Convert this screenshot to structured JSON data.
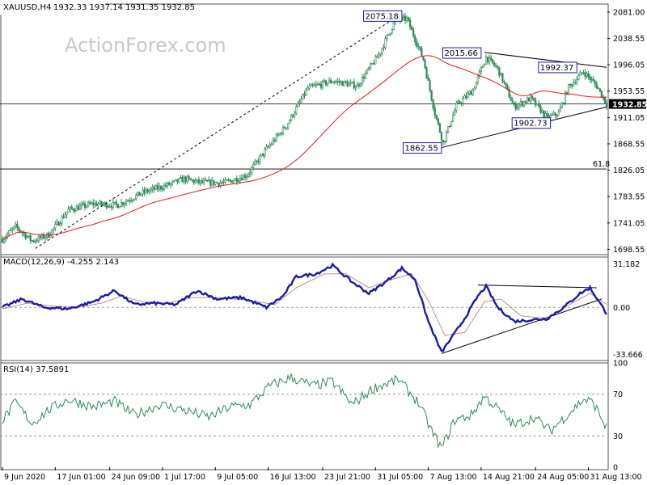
{
  "header": {
    "symbol": "XAUUSD,H4",
    "ohlc": "1932.33 1937.14 1931.35 1932.85"
  },
  "watermark": "ActionForex.com",
  "colors": {
    "candle": "#2e8b57",
    "ma": "#e8191f",
    "macd": "#1a1aa6",
    "signal": "#c08f8f",
    "rsi": "#2e8b57",
    "trend": "#000000",
    "label_border": "#1a1aa6",
    "label_fill": "#ffffff"
  },
  "chart_data": [
    {
      "type": "candlestick",
      "title": "XAUUSD,H4",
      "ylim": [
        1690,
        2090
      ],
      "y_ticks": [
        "2081.00",
        "2038.55",
        "1996.05",
        "1953.55",
        "1911.05",
        "1868.55",
        "1826.05",
        "1783.55",
        "1741.05",
        "1698.55"
      ],
      "last_price": "1932.85",
      "anchors": [
        {
          "i": 0,
          "v": 1715
        },
        {
          "i": 8,
          "v": 1735
        },
        {
          "i": 18,
          "v": 1712
        },
        {
          "i": 28,
          "v": 1722
        },
        {
          "i": 40,
          "v": 1762
        },
        {
          "i": 55,
          "v": 1772
        },
        {
          "i": 70,
          "v": 1770
        },
        {
          "i": 85,
          "v": 1790
        },
        {
          "i": 100,
          "v": 1802
        },
        {
          "i": 110,
          "v": 1812
        },
        {
          "i": 120,
          "v": 1806
        },
        {
          "i": 135,
          "v": 1806
        },
        {
          "i": 148,
          "v": 1818
        },
        {
          "i": 160,
          "v": 1860
        },
        {
          "i": 172,
          "v": 1898
        },
        {
          "i": 185,
          "v": 1958
        },
        {
          "i": 200,
          "v": 1970
        },
        {
          "i": 215,
          "v": 1962
        },
        {
          "i": 228,
          "v": 2012
        },
        {
          "i": 238,
          "v": 2068
        },
        {
          "i": 245,
          "v": 2070
        },
        {
          "i": 255,
          "v": 2005
        },
        {
          "i": 262,
          "v": 1918
        },
        {
          "i": 267,
          "v": 1870
        },
        {
          "i": 275,
          "v": 1930
        },
        {
          "i": 285,
          "v": 1955
        },
        {
          "i": 293,
          "v": 2008
        },
        {
          "i": 300,
          "v": 1990
        },
        {
          "i": 310,
          "v": 1928
        },
        {
          "i": 320,
          "v": 1942
        },
        {
          "i": 330,
          "v": 1910
        },
        {
          "i": 337,
          "v": 1918
        },
        {
          "i": 343,
          "v": 1960
        },
        {
          "i": 352,
          "v": 1985
        },
        {
          "i": 360,
          "v": 1962
        },
        {
          "i": 366,
          "v": 1932.85
        }
      ],
      "levels": [
        {
          "label": "61.8",
          "value": 1828
        }
      ],
      "annotations": [
        {
          "label": "2075.18",
          "value": 2075.18,
          "i": 242
        },
        {
          "label": "2015.66",
          "value": 2015.66,
          "i": 290
        },
        {
          "label": "1992.37",
          "value": 1992.37,
          "i": 348
        },
        {
          "label": "1902.73",
          "value": 1902.73,
          "i": 332
        },
        {
          "label": "1862.55",
          "value": 1862.55,
          "i": 266
        }
      ],
      "moving_average": {
        "name": "MA"
      }
    },
    {
      "type": "line",
      "title": "MACD(12,26,9) -4.255 2.143",
      "ylim": [
        -38,
        36
      ],
      "y_ticks": [
        "31.182",
        "0.00",
        "-33.666"
      ],
      "macd_anchors": [
        {
          "i": 0,
          "v": 0
        },
        {
          "i": 12,
          "v": 6
        },
        {
          "i": 25,
          "v": 0
        },
        {
          "i": 40,
          "v": -1
        },
        {
          "i": 55,
          "v": 4
        },
        {
          "i": 68,
          "v": 12
        },
        {
          "i": 80,
          "v": 2
        },
        {
          "i": 92,
          "v": 3
        },
        {
          "i": 105,
          "v": 2
        },
        {
          "i": 118,
          "v": 12
        },
        {
          "i": 130,
          "v": 6
        },
        {
          "i": 145,
          "v": 7
        },
        {
          "i": 160,
          "v": 0
        },
        {
          "i": 170,
          "v": 8
        },
        {
          "i": 178,
          "v": 22
        },
        {
          "i": 190,
          "v": 24
        },
        {
          "i": 200,
          "v": 30
        },
        {
          "i": 212,
          "v": 18
        },
        {
          "i": 222,
          "v": 10
        },
        {
          "i": 232,
          "v": 18
        },
        {
          "i": 242,
          "v": 28
        },
        {
          "i": 250,
          "v": 20
        },
        {
          "i": 258,
          "v": -10
        },
        {
          "i": 266,
          "v": -32
        },
        {
          "i": 272,
          "v": -22
        },
        {
          "i": 280,
          "v": -8
        },
        {
          "i": 288,
          "v": 8
        },
        {
          "i": 293,
          "v": 15
        },
        {
          "i": 300,
          "v": 0
        },
        {
          "i": 310,
          "v": -10
        },
        {
          "i": 320,
          "v": -9
        },
        {
          "i": 330,
          "v": -8
        },
        {
          "i": 340,
          "v": 0
        },
        {
          "i": 350,
          "v": 10
        },
        {
          "i": 356,
          "v": 14
        },
        {
          "i": 366,
          "v": -4.255
        }
      ],
      "signal_anchors": [
        {
          "i": 0,
          "v": -1
        },
        {
          "i": 15,
          "v": 3
        },
        {
          "i": 30,
          "v": 1
        },
        {
          "i": 45,
          "v": 0
        },
        {
          "i": 60,
          "v": 3
        },
        {
          "i": 72,
          "v": 8
        },
        {
          "i": 85,
          "v": 4
        },
        {
          "i": 100,
          "v": 3
        },
        {
          "i": 115,
          "v": 7
        },
        {
          "i": 130,
          "v": 7
        },
        {
          "i": 150,
          "v": 5
        },
        {
          "i": 165,
          "v": 2
        },
        {
          "i": 178,
          "v": 14
        },
        {
          "i": 195,
          "v": 24
        },
        {
          "i": 208,
          "v": 24
        },
        {
          "i": 222,
          "v": 14
        },
        {
          "i": 236,
          "v": 20
        },
        {
          "i": 248,
          "v": 24
        },
        {
          "i": 258,
          "v": 5
        },
        {
          "i": 268,
          "v": -20
        },
        {
          "i": 280,
          "v": -18
        },
        {
          "i": 292,
          "v": 4
        },
        {
          "i": 302,
          "v": 6
        },
        {
          "i": 314,
          "v": -6
        },
        {
          "i": 330,
          "v": -8
        },
        {
          "i": 345,
          "v": 3
        },
        {
          "i": 356,
          "v": 10
        },
        {
          "i": 366,
          "v": 2.143
        }
      ]
    },
    {
      "type": "line",
      "title": "RSI(14) 37.5891",
      "ylim": [
        0,
        100
      ],
      "y_ticks": [
        "100",
        "70",
        "30",
        "0"
      ],
      "levels": [
        70,
        30
      ],
      "anchors": [
        {
          "i": 0,
          "v": 45
        },
        {
          "i": 8,
          "v": 62
        },
        {
          "i": 18,
          "v": 42
        },
        {
          "i": 28,
          "v": 55
        },
        {
          "i": 40,
          "v": 65
        },
        {
          "i": 55,
          "v": 58
        },
        {
          "i": 68,
          "v": 63
        },
        {
          "i": 80,
          "v": 50
        },
        {
          "i": 95,
          "v": 60
        },
        {
          "i": 110,
          "v": 55
        },
        {
          "i": 125,
          "v": 48
        },
        {
          "i": 138,
          "v": 58
        },
        {
          "i": 150,
          "v": 60
        },
        {
          "i": 162,
          "v": 78
        },
        {
          "i": 175,
          "v": 86
        },
        {
          "i": 188,
          "v": 78
        },
        {
          "i": 200,
          "v": 82
        },
        {
          "i": 212,
          "v": 60
        },
        {
          "i": 225,
          "v": 76
        },
        {
          "i": 240,
          "v": 84
        },
        {
          "i": 252,
          "v": 62
        },
        {
          "i": 260,
          "v": 35
        },
        {
          "i": 266,
          "v": 18
        },
        {
          "i": 274,
          "v": 45
        },
        {
          "i": 284,
          "v": 50
        },
        {
          "i": 292,
          "v": 68
        },
        {
          "i": 300,
          "v": 56
        },
        {
          "i": 310,
          "v": 40
        },
        {
          "i": 322,
          "v": 48
        },
        {
          "i": 332,
          "v": 35
        },
        {
          "i": 342,
          "v": 50
        },
        {
          "i": 352,
          "v": 65
        },
        {
          "i": 358,
          "v": 62
        },
        {
          "i": 366,
          "v": 37.5891
        }
      ]
    }
  ],
  "x_axis": {
    "labels": [
      "9 Jun 2020",
      "17 Jun 01:00",
      "24 Jun 09:00",
      "1 Jul 17:00",
      "9 Jul 05:00",
      "16 Jul 13:00",
      "23 Jul 21:00",
      "31 Jul 05:00",
      "7 Aug 13:00",
      "14 Aug 21:00",
      "24 Aug 05:00",
      "31 Aug 13:00"
    ]
  }
}
